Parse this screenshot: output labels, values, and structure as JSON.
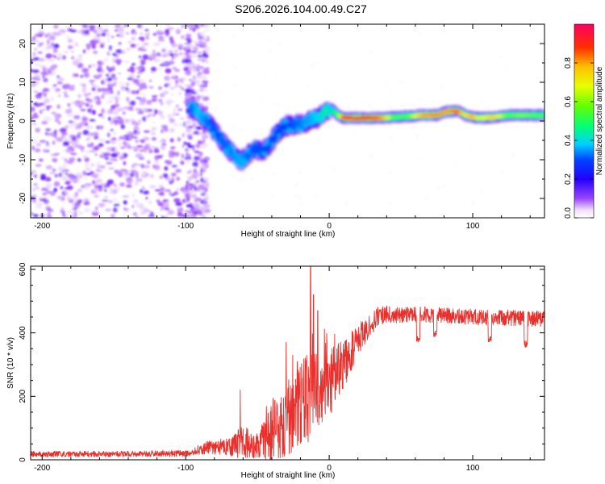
{
  "title": "S206.2026.104.00.49.C27",
  "chart_data": [
    {
      "type": "heatmap",
      "xlabel": "Height of straight line (km)",
      "ylabel": "Frequency (Hz)",
      "xlim": [
        -208,
        150
      ],
      "ylim": [
        -25,
        25
      ],
      "xticks": [
        -200,
        -100,
        0,
        100
      ],
      "yticks": [
        -20,
        -10,
        0,
        10,
        20
      ],
      "noise_region_x": [
        -208,
        -97
      ],
      "noise_edge_x": -97,
      "ridge": [
        {
          "x": -97,
          "y": 3.5,
          "a": 0.3
        },
        {
          "x": -92,
          "y": 2.5,
          "a": 0.38
        },
        {
          "x": -87,
          "y": 0.5,
          "a": 0.34
        },
        {
          "x": -82,
          "y": -1.5,
          "a": 0.3
        },
        {
          "x": -77,
          "y": -4.0,
          "a": 0.3
        },
        {
          "x": -72,
          "y": -6.5,
          "a": 0.32
        },
        {
          "x": -67,
          "y": -8.5,
          "a": 0.34
        },
        {
          "x": -62,
          "y": -10.5,
          "a": 0.36
        },
        {
          "x": -57,
          "y": -9.0,
          "a": 0.32
        },
        {
          "x": -52,
          "y": -7.0,
          "a": 0.3
        },
        {
          "x": -47,
          "y": -8.0,
          "a": 0.3
        },
        {
          "x": -42,
          "y": -6.5,
          "a": 0.28
        },
        {
          "x": -37,
          "y": -3.5,
          "a": 0.28
        },
        {
          "x": -32,
          "y": -1.5,
          "a": 0.28
        },
        {
          "x": -27,
          "y": -1.0,
          "a": 0.3
        },
        {
          "x": -22,
          "y": -0.8,
          "a": 0.32
        },
        {
          "x": -17,
          "y": -0.5,
          "a": 0.35
        },
        {
          "x": -12,
          "y": 0.5,
          "a": 0.36
        },
        {
          "x": -7,
          "y": 1.0,
          "a": 0.4
        },
        {
          "x": -2,
          "y": 2.5,
          "a": 0.45
        },
        {
          "x": 2,
          "y": 3.0,
          "a": 0.4
        },
        {
          "x": 6,
          "y": 1.5,
          "a": 0.55
        },
        {
          "x": 10,
          "y": 0.8,
          "a": 0.9
        },
        {
          "x": 20,
          "y": 0.8,
          "a": 0.92
        },
        {
          "x": 30,
          "y": 0.8,
          "a": 0.88
        },
        {
          "x": 38,
          "y": 0.8,
          "a": 0.8
        },
        {
          "x": 45,
          "y": 1.0,
          "a": 0.55
        },
        {
          "x": 55,
          "y": 1.2,
          "a": 0.55
        },
        {
          "x": 65,
          "y": 1.5,
          "a": 0.8
        },
        {
          "x": 75,
          "y": 1.5,
          "a": 0.82
        },
        {
          "x": 82,
          "y": 2.5,
          "a": 0.8
        },
        {
          "x": 90,
          "y": 2.5,
          "a": 0.85
        },
        {
          "x": 95,
          "y": 1.5,
          "a": 0.7
        },
        {
          "x": 100,
          "y": 1.0,
          "a": 0.8
        },
        {
          "x": 105,
          "y": 0.8,
          "a": 0.65
        },
        {
          "x": 115,
          "y": 1.0,
          "a": 0.75
        },
        {
          "x": 125,
          "y": 1.5,
          "a": 0.55
        },
        {
          "x": 135,
          "y": 1.5,
          "a": 0.6
        },
        {
          "x": 145,
          "y": 1.5,
          "a": 0.55
        },
        {
          "x": 150,
          "y": 1.5,
          "a": 0.55
        }
      ],
      "colorbar": {
        "label": "Normalized spectral amplitude",
        "range": [
          0,
          1
        ],
        "ticks": [
          0.0,
          0.2,
          0.4,
          0.6,
          0.8
        ],
        "tick_labels": [
          "0.0",
          "0.2",
          "0.4",
          "0.6",
          "0.8"
        ]
      }
    },
    {
      "type": "line",
      "xlabel": "Height of straight line (km)",
      "ylabel": "SNR (10 * v/v)",
      "xlim": [
        -208,
        150
      ],
      "ylim": [
        0,
        610
      ],
      "xticks": [
        -200,
        -100,
        0,
        100
      ],
      "yticks": [
        0,
        200,
        400,
        600
      ],
      "series": [
        {
          "name": "SNR",
          "color": "#e8302c",
          "envelope": [
            {
              "x": -208,
              "y": 18,
              "noise": 9
            },
            {
              "x": -150,
              "y": 18,
              "noise": 9
            },
            {
              "x": -100,
              "y": 20,
              "noise": 10
            },
            {
              "x": -85,
              "y": 38,
              "noise": 20
            },
            {
              "x": -70,
              "y": 45,
              "noise": 30
            },
            {
              "x": -60,
              "y": 50,
              "noise": 60
            },
            {
              "x": -50,
              "y": 45,
              "noise": 40
            },
            {
              "x": -40,
              "y": 80,
              "noise": 90
            },
            {
              "x": -30,
              "y": 130,
              "noise": 120
            },
            {
              "x": -20,
              "y": 180,
              "noise": 140
            },
            {
              "x": -10,
              "y": 210,
              "noise": 140
            },
            {
              "x": 0,
              "y": 240,
              "noise": 110
            },
            {
              "x": 10,
              "y": 300,
              "noise": 80
            },
            {
              "x": 20,
              "y": 380,
              "noise": 50
            },
            {
              "x": 35,
              "y": 455,
              "noise": 30
            },
            {
              "x": 60,
              "y": 460,
              "noise": 25
            },
            {
              "x": 100,
              "y": 450,
              "noise": 25
            },
            {
              "x": 150,
              "y": 445,
              "noise": 25
            }
          ],
          "spikes": [
            {
              "x": -13,
              "y": 610
            },
            {
              "x": -11,
              "y": 520
            },
            {
              "x": -8,
              "y": 470
            },
            {
              "x": -30,
              "y": 370
            },
            {
              "x": -62,
              "y": 220
            }
          ],
          "dips": [
            {
              "x": 62,
              "y": 370
            },
            {
              "x": 74,
              "y": 388
            },
            {
              "x": 112,
              "y": 370
            },
            {
              "x": 137,
              "y": 355
            }
          ]
        }
      ]
    }
  ]
}
